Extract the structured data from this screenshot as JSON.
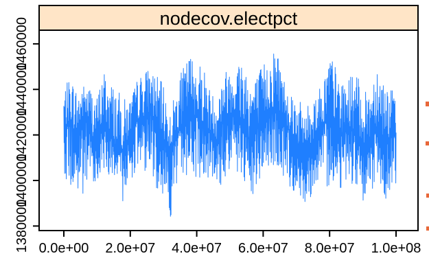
{
  "chart_data": {
    "type": "line",
    "strip_label": "nodecov.electpct",
    "xlabel": "",
    "ylabel": "",
    "xlim": [
      0,
      100000000
    ],
    "ylim": [
      1378000,
      1466000
    ],
    "x_ticks": [
      {
        "value": 0,
        "label": "0.0e+00"
      },
      {
        "value": 20000000,
        "label": "2.0e+07"
      },
      {
        "value": 40000000,
        "label": "4.0e+07"
      },
      {
        "value": 60000000,
        "label": "6.0e+07"
      },
      {
        "value": 80000000,
        "label": "8.0e+07"
      },
      {
        "value": 100000000,
        "label": "1.0e+08"
      }
    ],
    "y_ticks": [
      {
        "value": 1380000,
        "label": "1380000"
      },
      {
        "value": 1400000,
        "label": "1400000"
      },
      {
        "value": 1420000,
        "label": "1420000"
      },
      {
        "value": 1440000,
        "label": "1440000"
      },
      {
        "value": 1460000,
        "label": "1460000"
      }
    ],
    "grid": false,
    "series": [
      {
        "color": "#1f7fff",
        "x": [
          0,
          2000000,
          4000000,
          6000000,
          8000000,
          10000000,
          12000000,
          14000000,
          16000000,
          18000000,
          20000000,
          22000000,
          24000000,
          26000000,
          28000000,
          30000000,
          32000000,
          34000000,
          36000000,
          38000000,
          40000000,
          42000000,
          44000000,
          46000000,
          48000000,
          50000000,
          52000000,
          54000000,
          56000000,
          58000000,
          60000000,
          62000000,
          64000000,
          66000000,
          68000000,
          70000000,
          72000000,
          74000000,
          76000000,
          78000000,
          80000000,
          82000000,
          84000000,
          86000000,
          88000000,
          90000000,
          92000000,
          94000000,
          96000000,
          98000000,
          100000000
        ],
        "y": [
          1422000,
          1426000,
          1418000,
          1428000,
          1421000,
          1416000,
          1425000,
          1420000,
          1414000,
          1412000,
          1420000,
          1426000,
          1428000,
          1430000,
          1422000,
          1418000,
          1412000,
          1420000,
          1426000,
          1430000,
          1428000,
          1425000,
          1421000,
          1418000,
          1426000,
          1430000,
          1428000,
          1422000,
          1418000,
          1422000,
          1426000,
          1430000,
          1432000,
          1428000,
          1421000,
          1416000,
          1412000,
          1414000,
          1420000,
          1424000,
          1428000,
          1424000,
          1420000,
          1424000,
          1420000,
          1416000,
          1418000,
          1424000,
          1420000,
          1418000,
          1421000
        ],
        "envelope_min": [
          1404000,
          1395000,
          1393000,
          1388000,
          1400000,
          1399000,
          1404000,
          1402000,
          1396000,
          1390000,
          1400000,
          1404000,
          1404000,
          1404000,
          1396000,
          1394000,
          1382000,
          1396000,
          1402000,
          1402000,
          1400000,
          1402000,
          1401000,
          1394000,
          1398000,
          1404000,
          1404000,
          1396000,
          1389000,
          1395000,
          1404000,
          1404000,
          1406000,
          1400000,
          1396000,
          1394000,
          1390000,
          1392000,
          1398000,
          1396000,
          1398000,
          1398000,
          1396000,
          1402000,
          1392000,
          1387000,
          1393000,
          1398000,
          1393000,
          1391000,
          1396000
        ],
        "envelope_max": [
          1440000,
          1446000,
          1440000,
          1442000,
          1442000,
          1437000,
          1449000,
          1444000,
          1440000,
          1436000,
          1436000,
          1444000,
          1448000,
          1450000,
          1446000,
          1442000,
          1430000,
          1442000,
          1450000,
          1456000,
          1452000,
          1452000,
          1440000,
          1436000,
          1448000,
          1450000,
          1452000,
          1458000,
          1446000,
          1446000,
          1452000,
          1454000,
          1461000,
          1446000,
          1441000,
          1438000,
          1432000,
          1434000,
          1440000,
          1442000,
          1458000,
          1449000,
          1442000,
          1446000,
          1448000,
          1438000,
          1440000,
          1454000,
          1446000,
          1440000,
          1440000
        ]
      }
    ]
  }
}
